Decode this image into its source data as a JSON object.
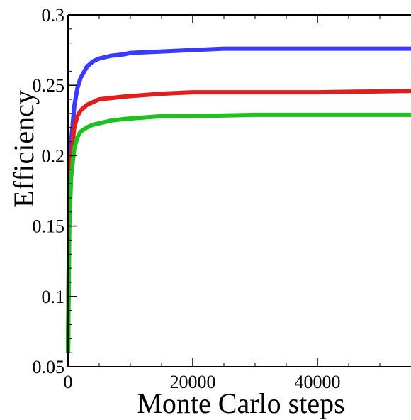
{
  "chart_data": {
    "type": "line",
    "title": "",
    "xlabel": "Monte Carlo steps",
    "ylabel": "Efficiency",
    "xlim": [
      0,
      55000
    ],
    "ylim": [
      0.05,
      0.3
    ],
    "grid": false,
    "x_ticks": [
      {
        "value": 0,
        "label": "0"
      },
      {
        "value": 20000,
        "label": "20000"
      },
      {
        "value": 40000,
        "label": "40000"
      }
    ],
    "y_ticks": [
      {
        "value": 0.05,
        "label": "0.05"
      },
      {
        "value": 0.1,
        "label": "0.1"
      },
      {
        "value": 0.15,
        "label": "0.15"
      },
      {
        "value": 0.2,
        "label": "0.2"
      },
      {
        "value": 0.25,
        "label": "0.25"
      },
      {
        "value": 0.3,
        "label": "0.3"
      }
    ],
    "series": [
      {
        "color": "#3a3aff",
        "x": [
          0,
          200,
          500,
          1000,
          1500,
          2000,
          3000,
          4000,
          5000,
          7000,
          9000,
          10000,
          15000,
          20000,
          25000,
          30000,
          40000,
          55000
        ],
        "y": [
          0.06,
          0.175,
          0.21,
          0.235,
          0.248,
          0.255,
          0.263,
          0.267,
          0.269,
          0.271,
          0.272,
          0.273,
          0.274,
          0.275,
          0.276,
          0.276,
          0.276,
          0.276
        ]
      },
      {
        "color": "#e01e1e",
        "x": [
          0,
          200,
          500,
          1000,
          1500,
          2000,
          3000,
          4000,
          5000,
          7000,
          9000,
          12000,
          15000,
          20000,
          30000,
          40000,
          55000
        ],
        "y": [
          0.06,
          0.165,
          0.2,
          0.22,
          0.228,
          0.232,
          0.236,
          0.238,
          0.24,
          0.241,
          0.242,
          0.243,
          0.244,
          0.245,
          0.245,
          0.245,
          0.246
        ]
      },
      {
        "color": "#20c020",
        "x": [
          0,
          200,
          500,
          1000,
          1500,
          2000,
          3000,
          4000,
          5000,
          7000,
          9000,
          12000,
          15000,
          20000,
          30000,
          40000,
          55000
        ],
        "y": [
          0.06,
          0.15,
          0.185,
          0.205,
          0.213,
          0.217,
          0.22,
          0.222,
          0.223,
          0.225,
          0.226,
          0.227,
          0.228,
          0.228,
          0.229,
          0.229,
          0.229
        ]
      }
    ]
  }
}
